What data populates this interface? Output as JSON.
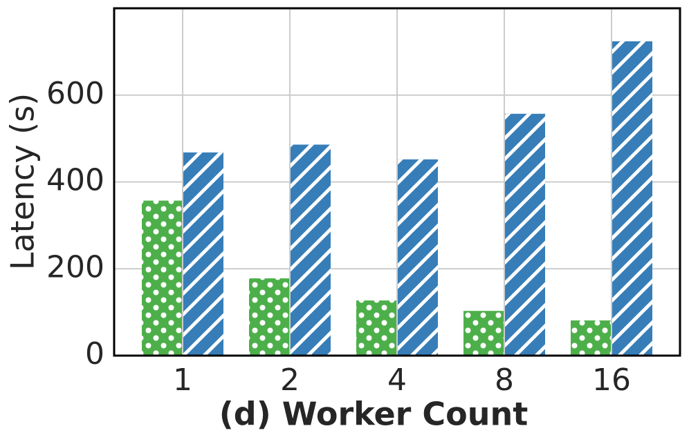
{
  "chart_data": {
    "type": "bar",
    "x_label": "(d) Worker Count",
    "y_label": "Latency (s)",
    "categories": [
      "1",
      "2",
      "4",
      "8",
      "16"
    ],
    "series": [
      {
        "color": "#4daf4a",
        "pattern": "dots",
        "values": [
          357,
          178,
          127,
          103,
          81
        ]
      },
      {
        "color": "#377eb8",
        "pattern": "hatch",
        "values": [
          468,
          486,
          452,
          557,
          724
        ]
      }
    ],
    "ylim": [
      0,
      800
    ],
    "yticks": [
      0,
      200,
      400,
      600
    ],
    "grid": true
  }
}
